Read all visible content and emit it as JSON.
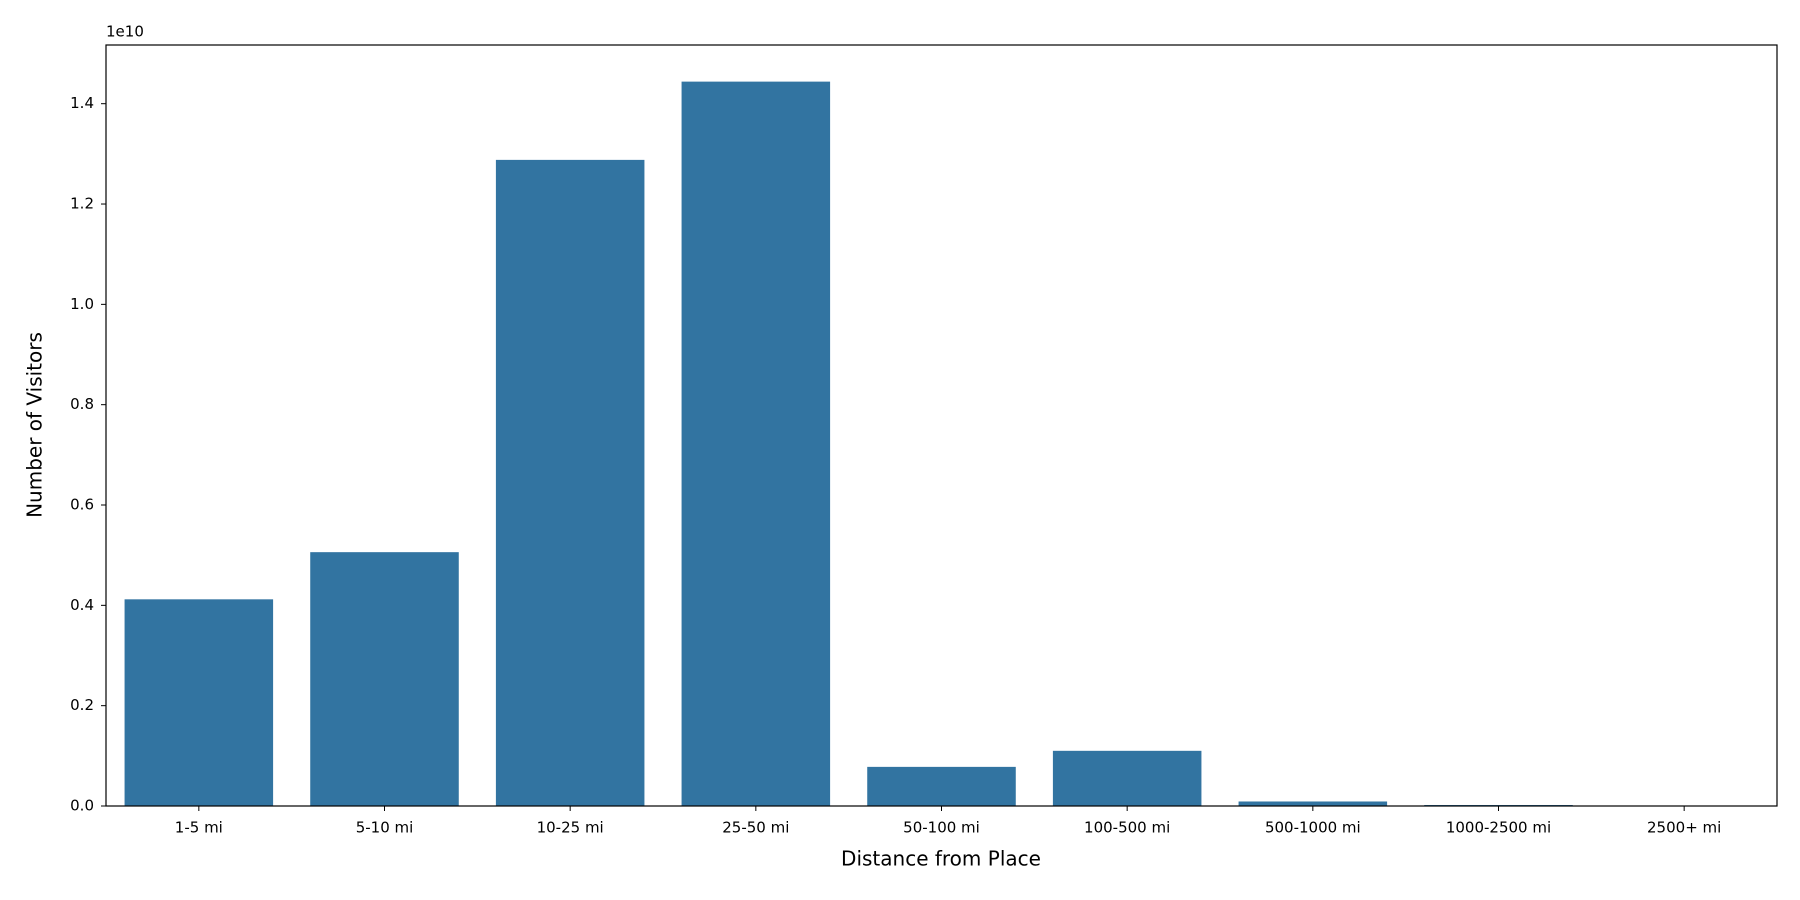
{
  "chart_data": {
    "type": "bar",
    "x_label": "Distance from Place",
    "y_label": "Number of Visitors",
    "y_offset_label": "1e10",
    "categories": [
      "1-5 mi",
      "5-10 mi",
      "10-25 mi",
      "25-50 mi",
      "50-100 mi",
      "100-500 mi",
      "500-1000 mi",
      "1000-2500 mi",
      "2500+ mi"
    ],
    "values": [
      0.412,
      0.506,
      1.288,
      1.444,
      0.078,
      0.11,
      0.009,
      0.002,
      0.0005
    ],
    "color": "#3274a1",
    "ylim": [
      0,
      1.517
    ],
    "yticks": [
      {
        "value": 0,
        "label": "0.0"
      },
      0.2,
      0.4,
      0.6,
      0.8,
      {
        "value": 1,
        "label": "1.0"
      },
      1.2,
      1.4
    ],
    "grid": false
  }
}
